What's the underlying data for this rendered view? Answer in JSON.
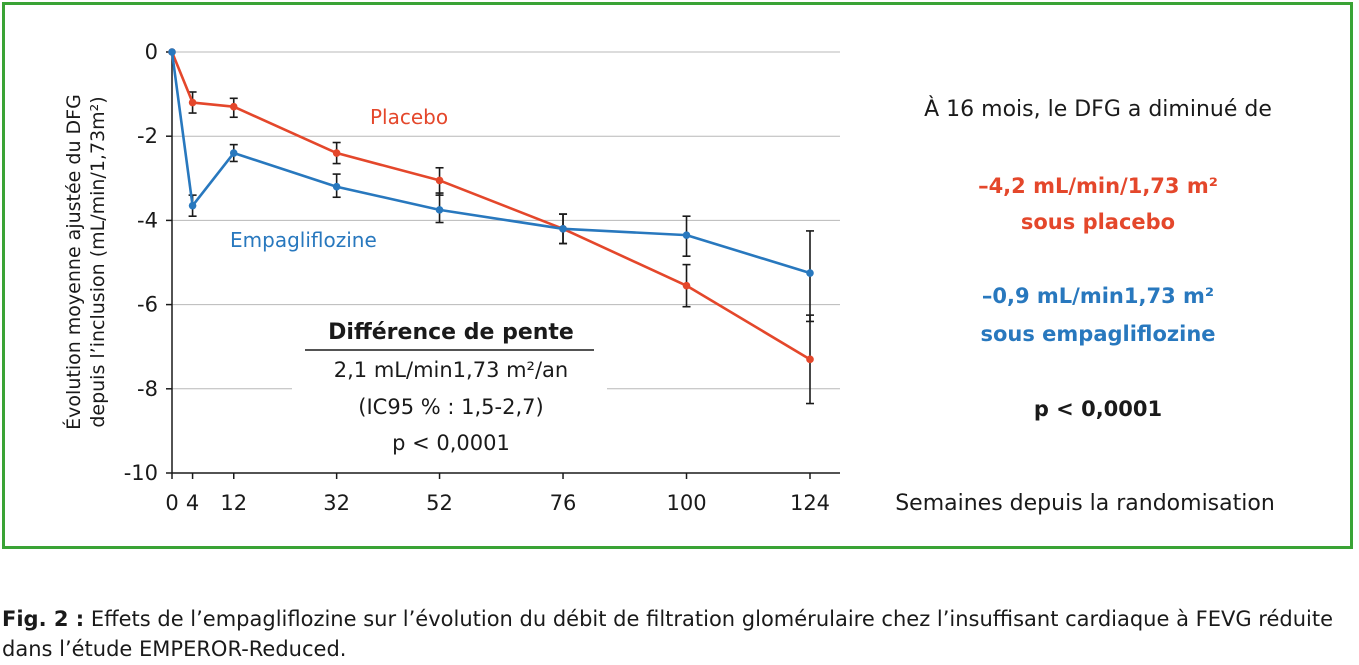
{
  "chart_data": {
    "type": "line",
    "ylabel_lines": [
      "Évolution moyenne ajustée du DFG",
      "depuis l’inclusion (mL/min/1,73m²)"
    ],
    "xlabel": "Semaines depuis la randomisation",
    "x": [
      0,
      4,
      12,
      32,
      52,
      76,
      100,
      124
    ],
    "x_tick_labels": [
      "0",
      "4",
      "12",
      "32",
      "52",
      "76",
      "100",
      "124"
    ],
    "y_ticks": [
      0,
      -2,
      -4,
      -6,
      -8,
      -10
    ],
    "y_tick_labels": [
      "0",
      "-2",
      "-4",
      "-6",
      "-8",
      "-10"
    ],
    "xlim": [
      0,
      128
    ],
    "ylim": [
      -10,
      0
    ],
    "grid": "horizontal",
    "series": [
      {
        "name": "Placebo",
        "color": "#e4472b",
        "values": [
          0,
          -1.2,
          -1.3,
          -2.4,
          -3.05,
          -4.2,
          -5.55,
          -7.3
        ],
        "err_low": [
          0,
          -1.45,
          -1.55,
          -2.65,
          -3.4,
          -4.55,
          -6.05,
          -8.35
        ],
        "err_high": [
          0,
          -0.95,
          -1.1,
          -2.15,
          -2.75,
          -3.85,
          -5.05,
          -6.25
        ]
      },
      {
        "name": "Empagliflozine",
        "color": "#2878be",
        "values": [
          0,
          -3.65,
          -2.4,
          -3.2,
          -3.75,
          -4.2,
          -4.35,
          -5.25
        ],
        "err_low": [
          0,
          -3.9,
          -2.6,
          -3.45,
          -4.05,
          -4.55,
          -4.85,
          -6.4
        ],
        "err_high": [
          0,
          -3.4,
          -2.2,
          -2.9,
          -3.35,
          -3.85,
          -3.9,
          -4.25
        ]
      }
    ],
    "inset": {
      "title": "Différence de pente",
      "line1": "2,1 mL/min1,73 m²/an",
      "line2": "(IC95 % : 1,5-2,7)",
      "line3": "p < 0,0001"
    },
    "summary": {
      "intro": "À 16 mois, le DFG a diminué de",
      "placebo_value": "–4,2 mL/min/1,73 m²",
      "placebo_label": "sous placebo",
      "empa_value": "–0,9 mL/min1,73 m²",
      "empa_label": "sous empagliflozine",
      "p_value": "p < 0,0001"
    }
  },
  "caption": {
    "label": "Fig. 2 :",
    "text": " Effets de l’empagliflozine sur l’évolution du débit de filtration glomérulaire chez l’insuffisant cardiaque à FEVG réduite dans l’étude EMPEROR-Reduced."
  },
  "colors": {
    "border": "#3aa335",
    "placebo": "#e4472b",
    "empa": "#2878be"
  }
}
